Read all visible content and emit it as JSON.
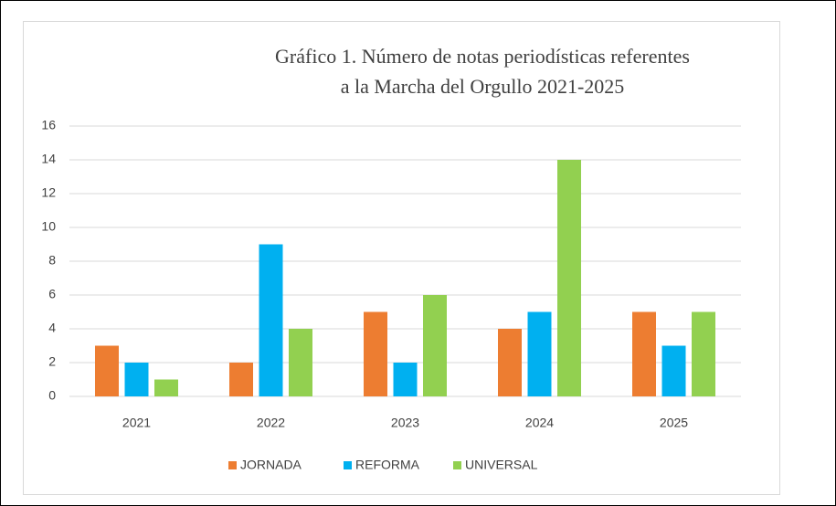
{
  "chart_data": {
    "type": "bar",
    "title": "Gráfico 1. Número de notas periodísticas referentes a la Marcha del Orgullo 2021-2025",
    "categories": [
      "2021",
      "2022",
      "2023",
      "2024",
      "2025"
    ],
    "series": [
      {
        "name": "JORNADA",
        "color": "#ed7d31",
        "values": [
          3,
          2,
          5,
          4,
          5
        ]
      },
      {
        "name": "REFORMA",
        "color": "#00b0f0",
        "values": [
          2,
          9,
          2,
          5,
          3
        ]
      },
      {
        "name": "UNIVERSAL",
        "color": "#92d050",
        "values": [
          1,
          4,
          6,
          14,
          5
        ]
      }
    ],
    "ylim": [
      0,
      16
    ],
    "yticks": [
      0,
      2,
      4,
      6,
      8,
      10,
      12,
      14,
      16
    ],
    "grid": true,
    "legend": "bottom"
  }
}
